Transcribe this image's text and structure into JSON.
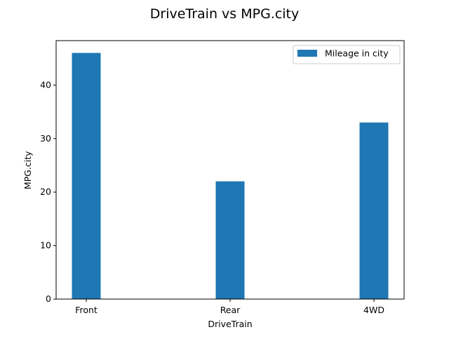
{
  "chart_data": {
    "type": "bar",
    "title": "DriveTrain vs MPG.city",
    "xlabel": "DriveTrain",
    "ylabel": "MPG.city",
    "categories": [
      "Front",
      "Rear",
      "4WD"
    ],
    "series": [
      {
        "name": "Mileage in city",
        "values": [
          46,
          22,
          33
        ],
        "color": "#1f77b4"
      }
    ],
    "ylim": [
      0,
      48.3
    ],
    "yticks": [
      0,
      10,
      20,
      30,
      40
    ],
    "grid": false,
    "legend_position": "top-right"
  }
}
